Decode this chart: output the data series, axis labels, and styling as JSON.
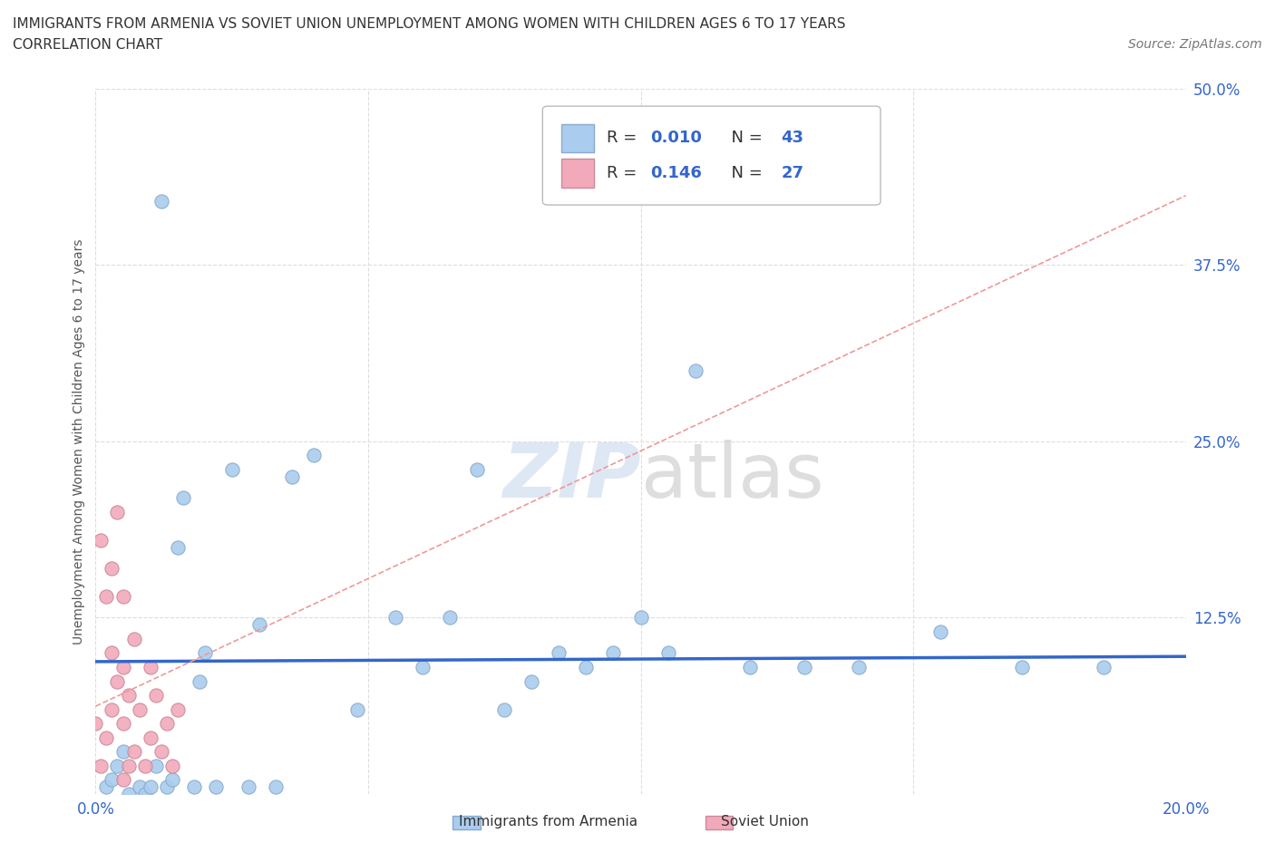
{
  "title_line1": "IMMIGRANTS FROM ARMENIA VS SOVIET UNION UNEMPLOYMENT AMONG WOMEN WITH CHILDREN AGES 6 TO 17 YEARS",
  "title_line2": "CORRELATION CHART",
  "source_text": "Source: ZipAtlas.com",
  "ylabel": "Unemployment Among Women with Children Ages 6 to 17 years",
  "xlim": [
    0.0,
    0.2
  ],
  "ylim": [
    0.0,
    0.5
  ],
  "xticks": [
    0.0,
    0.05,
    0.1,
    0.15,
    0.2
  ],
  "ytick_positions": [
    0.0,
    0.125,
    0.25,
    0.375,
    0.5
  ],
  "grid_color": "#dddddd",
  "background_color": "#ffffff",
  "watermark_text": "ZIPatlas",
  "armenia_color": "#aaccee",
  "soviet_color": "#f2aabb",
  "armenia_edge": "#88aacc",
  "soviet_edge": "#cc8899",
  "armenia_R": 0.01,
  "armenia_N": 43,
  "soviet_R": 0.146,
  "soviet_N": 27,
  "blue_color": "#3366cc",
  "armenia_trend_color": "#3366cc",
  "soviet_trend_color": "#ee9999",
  "armenia_trend_lw": 2.5,
  "soviet_trend_lw": 1.2,
  "armenia_points_x": [
    0.002,
    0.003,
    0.004,
    0.005,
    0.006,
    0.008,
    0.009,
    0.01,
    0.011,
    0.012,
    0.013,
    0.014,
    0.015,
    0.016,
    0.018,
    0.019,
    0.02,
    0.022,
    0.025,
    0.028,
    0.03,
    0.033,
    0.036,
    0.04,
    0.048,
    0.055,
    0.06,
    0.065,
    0.07,
    0.075,
    0.08,
    0.085,
    0.09,
    0.095,
    0.1,
    0.105,
    0.11,
    0.12,
    0.13,
    0.14,
    0.155,
    0.17,
    0.185
  ],
  "armenia_points_y": [
    0.005,
    0.01,
    0.02,
    0.03,
    0.0,
    0.005,
    0.0,
    0.005,
    0.02,
    0.42,
    0.005,
    0.01,
    0.175,
    0.21,
    0.005,
    0.08,
    0.1,
    0.005,
    0.23,
    0.005,
    0.12,
    0.005,
    0.225,
    0.24,
    0.06,
    0.125,
    0.09,
    0.125,
    0.23,
    0.06,
    0.08,
    0.1,
    0.09,
    0.1,
    0.125,
    0.1,
    0.3,
    0.09,
    0.09,
    0.09,
    0.115,
    0.09,
    0.09
  ],
  "soviet_points_x": [
    0.0,
    0.001,
    0.001,
    0.002,
    0.002,
    0.003,
    0.003,
    0.003,
    0.004,
    0.004,
    0.005,
    0.005,
    0.005,
    0.005,
    0.006,
    0.006,
    0.007,
    0.007,
    0.008,
    0.009,
    0.01,
    0.01,
    0.011,
    0.012,
    0.013,
    0.014,
    0.015
  ],
  "soviet_points_y": [
    0.05,
    0.02,
    0.18,
    0.04,
    0.14,
    0.06,
    0.1,
    0.16,
    0.08,
    0.2,
    0.01,
    0.05,
    0.09,
    0.14,
    0.02,
    0.07,
    0.03,
    0.11,
    0.06,
    0.02,
    0.04,
    0.09,
    0.07,
    0.03,
    0.05,
    0.02,
    0.06
  ]
}
